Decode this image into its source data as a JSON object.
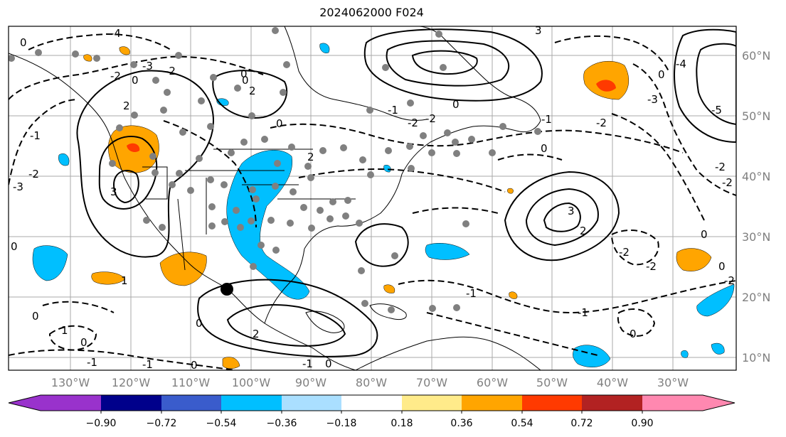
{
  "title": "2024062000 F024",
  "longitude_labels": [
    "130°W",
    "120°W",
    "110°W",
    "100°W",
    "90°W",
    "80°W",
    "70°W",
    "60°W",
    "50°W",
    "40°W",
    "30°W"
  ],
  "latitude_labels": [
    "60°N",
    "50°N",
    "40°N",
    "30°N",
    "20°N",
    "10°N"
  ],
  "colorbar": {
    "ticks": [
      "−0.90",
      "−0.72",
      "−0.54",
      "−0.36",
      "−0.18",
      "0.18",
      "0.36",
      "0.54",
      "0.72",
      "0.90"
    ],
    "under_color": "#9932cc",
    "over_color": "#ff88b0",
    "bins": [
      "#9932cc",
      "#00008b",
      "#3a5ccc",
      "#00bfff",
      "#aadfff",
      "#ffffff",
      "#ffeb8a",
      "#ffa500",
      "#ff3a00",
      "#b22222",
      "#ff88b0"
    ]
  },
  "contour_labels": [
    "4",
    "3",
    "2",
    "1",
    "0",
    "-1",
    "-2",
    "-3",
    "-4",
    "-5"
  ],
  "colors": {
    "positive_fill": "#ffa500",
    "strong_positive_fill": "#ff3a00",
    "negative_fill": "#00bfff",
    "station_marker": "#808080",
    "storm_marker": "#000000"
  }
}
